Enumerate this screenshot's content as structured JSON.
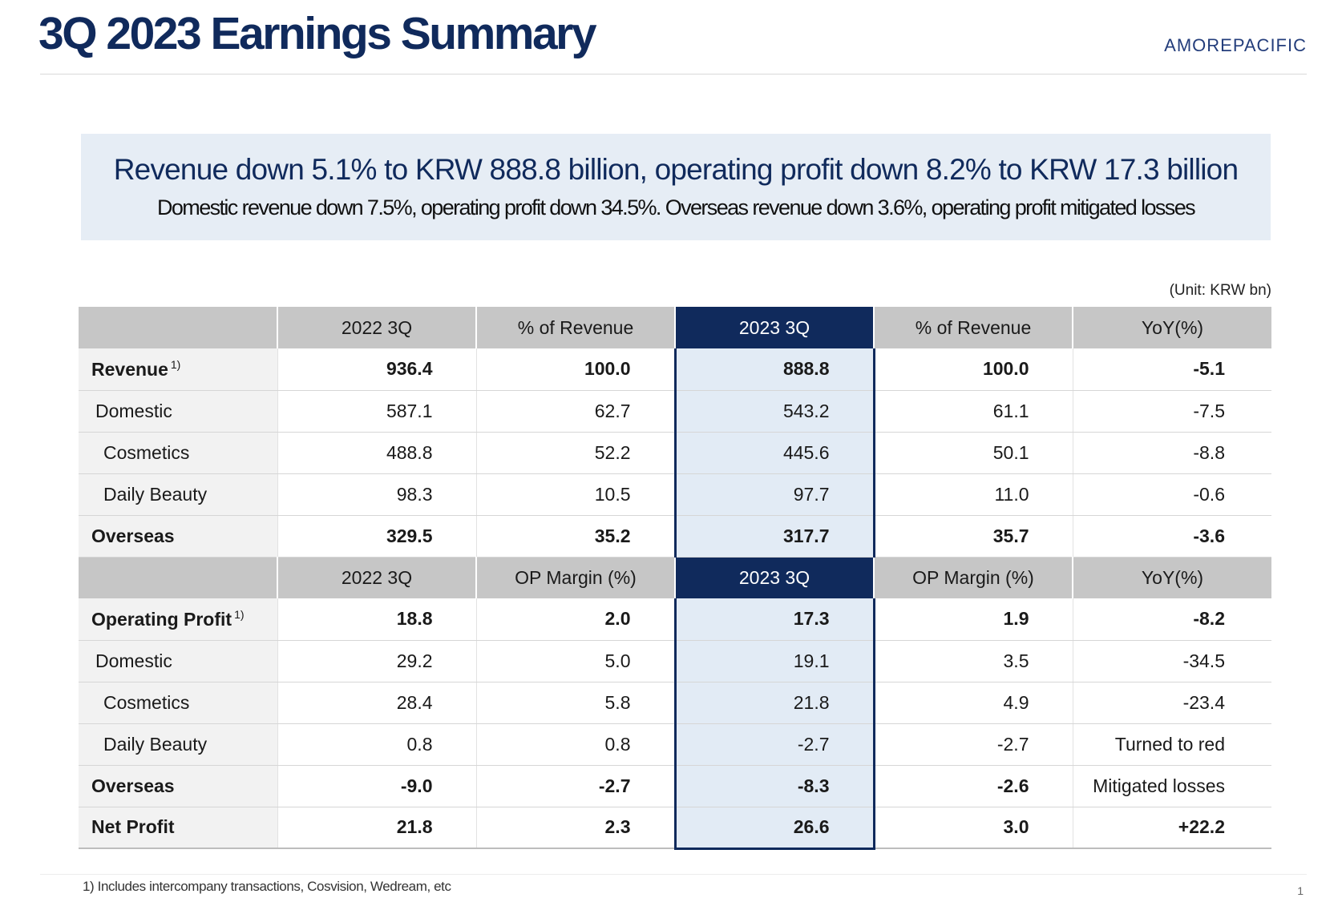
{
  "header": {
    "title": "3Q 2023 Earnings Summary",
    "brand": "AMOREPACIFIC"
  },
  "summary": {
    "headline": "Revenue down 5.1% to  KRW 888.8 billion, operating profit down 8.2% to KRW 17.3 billion",
    "subline": "Domestic revenue down 7.5%, operating profit down 34.5%. Overseas revenue down 3.6%, operating profit mitigated losses"
  },
  "unit": "(Unit: KRW bn)",
  "revenue_table": {
    "headers": [
      "",
      "2022 3Q",
      "% of Revenue",
      "2023 3Q",
      "% of Revenue",
      "YoY(%)"
    ],
    "rows": [
      {
        "label": "Revenue",
        "footnote": "1)",
        "values": [
          "936.4",
          "100.0",
          "888.8",
          "100.0",
          "-5.1"
        ]
      },
      {
        "label": "Domestic",
        "values": [
          "587.1",
          "62.7",
          "543.2",
          "61.1",
          "-7.5"
        ]
      },
      {
        "label": "Cosmetics",
        "values": [
          "488.8",
          "52.2",
          "445.6",
          "50.1",
          "-8.8"
        ]
      },
      {
        "label": "Daily Beauty",
        "values": [
          "98.3",
          "10.5",
          "97.7",
          "11.0",
          "-0.6"
        ]
      },
      {
        "label": "Overseas",
        "values": [
          "329.5",
          "35.2",
          "317.7",
          "35.7",
          "-3.6"
        ]
      }
    ]
  },
  "profit_table": {
    "headers": [
      "",
      "2022 3Q",
      "OP Margin (%)",
      "2023 3Q",
      "OP Margin (%)",
      "YoY(%)"
    ],
    "rows": [
      {
        "label": "Operating Profit",
        "footnote": "1)",
        "values": [
          "18.8",
          "2.0",
          "17.3",
          "1.9",
          "-8.2"
        ]
      },
      {
        "label": "Domestic",
        "values": [
          "29.2",
          "5.0",
          "19.1",
          "3.5",
          "-34.5"
        ]
      },
      {
        "label": "Cosmetics",
        "values": [
          "28.4",
          "5.8",
          "21.8",
          "4.9",
          "-23.4"
        ]
      },
      {
        "label": "Daily Beauty",
        "values": [
          "0.8",
          "0.8",
          "-2.7",
          "-2.7",
          "Turned to red"
        ]
      },
      {
        "label": "Overseas",
        "values": [
          "-9.0",
          "-2.7",
          "-8.3",
          "-2.6",
          "Mitigated losses"
        ]
      },
      {
        "label": "Net Profit",
        "values": [
          "21.8",
          "2.3",
          "26.6",
          "3.0",
          "+22.2"
        ]
      }
    ]
  },
  "footnote": "1)  Includes intercompany transactions, Cosvision, Wedream, etc",
  "page_number": "1",
  "colors": {
    "navy": "#102a5c",
    "header_gray": "#c6c6c6",
    "highlight_column": "#e2ebf5",
    "summary_box": "#e6edf5"
  }
}
